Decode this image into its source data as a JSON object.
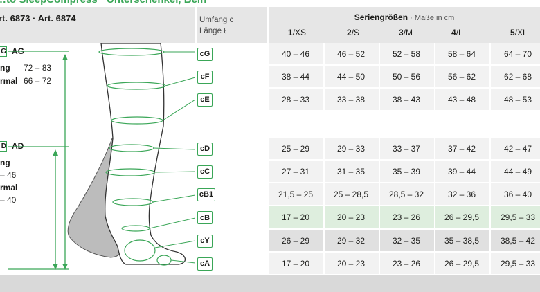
{
  "header": {
    "title_partial": "…to SleepCompress · Unterschenkel, Bein",
    "art_label": "rt. 6873 · Art. 6874",
    "umfang_line1": "Umfang c",
    "umfang_line2": "Länge ℓ",
    "series_bold": "Seriengrößen",
    "series_suffix": " · Maße in cm",
    "sizes": [
      {
        "num": "1",
        "name": "/XS"
      },
      {
        "num": "2",
        "name": "/S"
      },
      {
        "num": "3",
        "name": "/M"
      },
      {
        "num": "4",
        "name": "/L"
      },
      {
        "num": "5",
        "name": "/XL"
      }
    ]
  },
  "left_panel": {
    "ag_box": "G",
    "ag_label": "AG",
    "ag_line1_label": "ng",
    "ag_line1_value": "72 – 83",
    "ag_line2_label": "rmal",
    "ag_line2_value": "66 – 72",
    "ad_box": "D",
    "ad_label": "AD",
    "ad_line1_label": "ng",
    "ad_line2_value": "– 46",
    "ad_line3_label": "rmal",
    "ad_line4_value": "– 40"
  },
  "rows": [
    {
      "code": "cG",
      "values": [
        "40 – 46",
        "46 – 52",
        "52 – 58",
        "58 – 64",
        "64 – 70"
      ]
    },
    {
      "code": "cF",
      "values": [
        "38 – 44",
        "44 – 50",
        "50 – 56",
        "56 – 62",
        "62 – 68"
      ]
    },
    {
      "code": "cE",
      "values": [
        "28 – 33",
        "33 – 38",
        "38 – 43",
        "43 – 48",
        "48 – 53"
      ]
    },
    {
      "code": "cD",
      "values": [
        "25 – 29",
        "29 – 33",
        "33 – 37",
        "37 – 42",
        "42 – 47"
      ]
    },
    {
      "code": "cC",
      "values": [
        "27 – 31",
        "31 – 35",
        "35 – 39",
        "39 – 44",
        "44 – 49"
      ]
    },
    {
      "code": "cB1",
      "values": [
        "21,5 – 25",
        "25 – 28,5",
        "28,5 – 32",
        "32 – 36",
        "36 – 40"
      ]
    },
    {
      "code": "cB",
      "values": [
        "17 – 20",
        "20 – 23",
        "23 – 26",
        "26 – 29,5",
        "29,5 – 33"
      ]
    },
    {
      "code": "cY",
      "values": [
        "26 – 29",
        "29 – 32",
        "32 – 35",
        "35 – 38,5",
        "38,5 – 42"
      ]
    },
    {
      "code": "cA",
      "values": [
        "17 – 20",
        "20 – 23",
        "23 – 26",
        "26 – 29,5",
        "29,5 – 33"
      ]
    }
  ],
  "colors": {
    "accent": "#3aa657",
    "row_light": "#f2f2f2",
    "row_green": "#deeede",
    "row_gray": "#e0e0e0",
    "header_bg": "#e6e6e6"
  }
}
